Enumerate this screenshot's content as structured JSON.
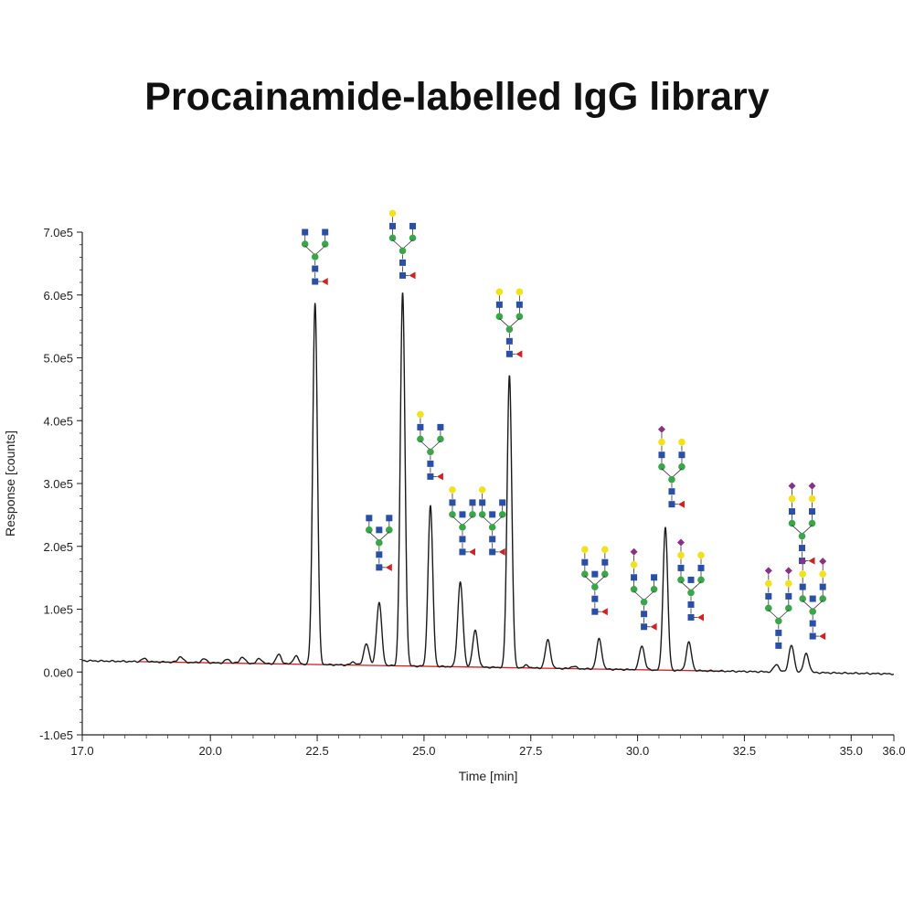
{
  "title": "Procainamide-labelled IgG library",
  "colors": {
    "trace": "#1a1a1a",
    "baseline": "#d42020",
    "axis": "#222222",
    "glcnac": "#2a4fa8",
    "mannose": "#3aa64a",
    "galactose": "#f2e21a",
    "fucose": "#d42020",
    "sialic_acid": "#8a2f8a"
  },
  "chart_data": {
    "type": "line",
    "title": "Procainamide-labelled IgG library",
    "xlabel": "Time [min]",
    "ylabel": "Response [counts]",
    "xlim": [
      17.0,
      36.0
    ],
    "ylim": [
      -100000,
      700000
    ],
    "x_ticks": [
      17.0,
      20.0,
      22.5,
      25.0,
      27.5,
      30.0,
      32.5,
      35.0,
      36.0
    ],
    "x_tick_labels": [
      "17.0",
      "20.0",
      "22.5",
      "25.0",
      "27.5",
      "30.0",
      "32.5",
      "35.0",
      "36.0"
    ],
    "y_ticks": [
      -100000,
      0,
      100000,
      200000,
      300000,
      400000,
      500000,
      600000,
      700000
    ],
    "y_tick_labels": [
      "-1.0e5",
      "0.0e0",
      "1.0e5",
      "2.0e5",
      "3.0e5",
      "4.0e5",
      "5.0e5",
      "6.0e5",
      "7.0e5"
    ],
    "baseline": {
      "start": [
        17.0,
        18000
      ],
      "end": [
        36.0,
        -3000
      ]
    },
    "peaks": [
      {
        "rt": 18.45,
        "height": 5000,
        "label": ""
      },
      {
        "rt": 19.3,
        "height": 9000,
        "label": ""
      },
      {
        "rt": 19.85,
        "height": 6000,
        "label": ""
      },
      {
        "rt": 20.4,
        "height": 6000,
        "label": ""
      },
      {
        "rt": 20.75,
        "height": 10000,
        "label": ""
      },
      {
        "rt": 21.15,
        "height": 8000,
        "label": ""
      },
      {
        "rt": 21.6,
        "height": 15000,
        "label": ""
      },
      {
        "rt": 22.0,
        "height": 13000,
        "label": ""
      },
      {
        "rt": 22.45,
        "height": 575000,
        "label": "G0F"
      },
      {
        "rt": 23.35,
        "height": 5000,
        "label": ""
      },
      {
        "rt": 23.65,
        "height": 35000,
        "label": ""
      },
      {
        "rt": 23.95,
        "height": 100000,
        "label": "G0F+GlcNAc"
      },
      {
        "rt": 24.5,
        "height": 593000,
        "label": "G1F"
      },
      {
        "rt": 25.15,
        "height": 255000,
        "label": "G1F'"
      },
      {
        "rt": 25.85,
        "height": 135000,
        "label": "G1F+GlcNAc"
      },
      {
        "rt": 26.2,
        "height": 58000,
        "label": "G1F'+GlcNAc"
      },
      {
        "rt": 27.0,
        "height": 465000,
        "label": "G2F"
      },
      {
        "rt": 27.4,
        "height": 4000,
        "label": ""
      },
      {
        "rt": 27.9,
        "height": 45000,
        "label": ""
      },
      {
        "rt": 28.5,
        "height": 4000,
        "label": ""
      },
      {
        "rt": 29.1,
        "height": 48000,
        "label": "G2F+GlcNAc"
      },
      {
        "rt": 30.1,
        "height": 38000,
        "label": "G1FS1"
      },
      {
        "rt": 30.65,
        "height": 227000,
        "label": "G2FS1"
      },
      {
        "rt": 31.2,
        "height": 45000,
        "label": "G2FS1+GlcNAc"
      },
      {
        "rt": 33.25,
        "height": 12000,
        "label": ""
      },
      {
        "rt": 33.6,
        "height": 43000,
        "label": "G2FS2"
      },
      {
        "rt": 33.95,
        "height": 30000,
        "label": "G2FS2+GlcNAc"
      }
    ],
    "glycan_annotations": [
      {
        "rt": 22.45,
        "apex_y": 700000,
        "structure": "G0F"
      },
      {
        "rt": 24.5,
        "apex_y": 730000,
        "structure": "G1F"
      },
      {
        "rt": 23.95,
        "apex_y": 245000,
        "structure": "G0F+GlcNAc"
      },
      {
        "rt": 25.15,
        "apex_y": 410000,
        "structure": "G1F'"
      },
      {
        "rt": 25.9,
        "apex_y": 290000,
        "structure": "G1F+GlcNAc"
      },
      {
        "rt": 26.6,
        "apex_y": 290000,
        "structure": "G1F'+GlcNAc"
      },
      {
        "rt": 27.0,
        "apex_y": 605000,
        "structure": "G2F"
      },
      {
        "rt": 29.0,
        "apex_y": 195000,
        "structure": "G2F+GlcNAc"
      },
      {
        "rt": 30.15,
        "apex_y": 200000,
        "structure": "G1FS1"
      },
      {
        "rt": 30.8,
        "apex_y": 395000,
        "structure": "G2FS1"
      },
      {
        "rt": 31.25,
        "apex_y": 215000,
        "structure": "G2FS1+GlcNAc"
      },
      {
        "rt": 33.85,
        "apex_y": 305000,
        "structure": "G2FS2"
      },
      {
        "rt": 33.3,
        "apex_y": 170000,
        "structure": "G2S2"
      },
      {
        "rt": 34.1,
        "apex_y": 185000,
        "structure": "G2FS2+GlcNAc"
      }
    ]
  }
}
